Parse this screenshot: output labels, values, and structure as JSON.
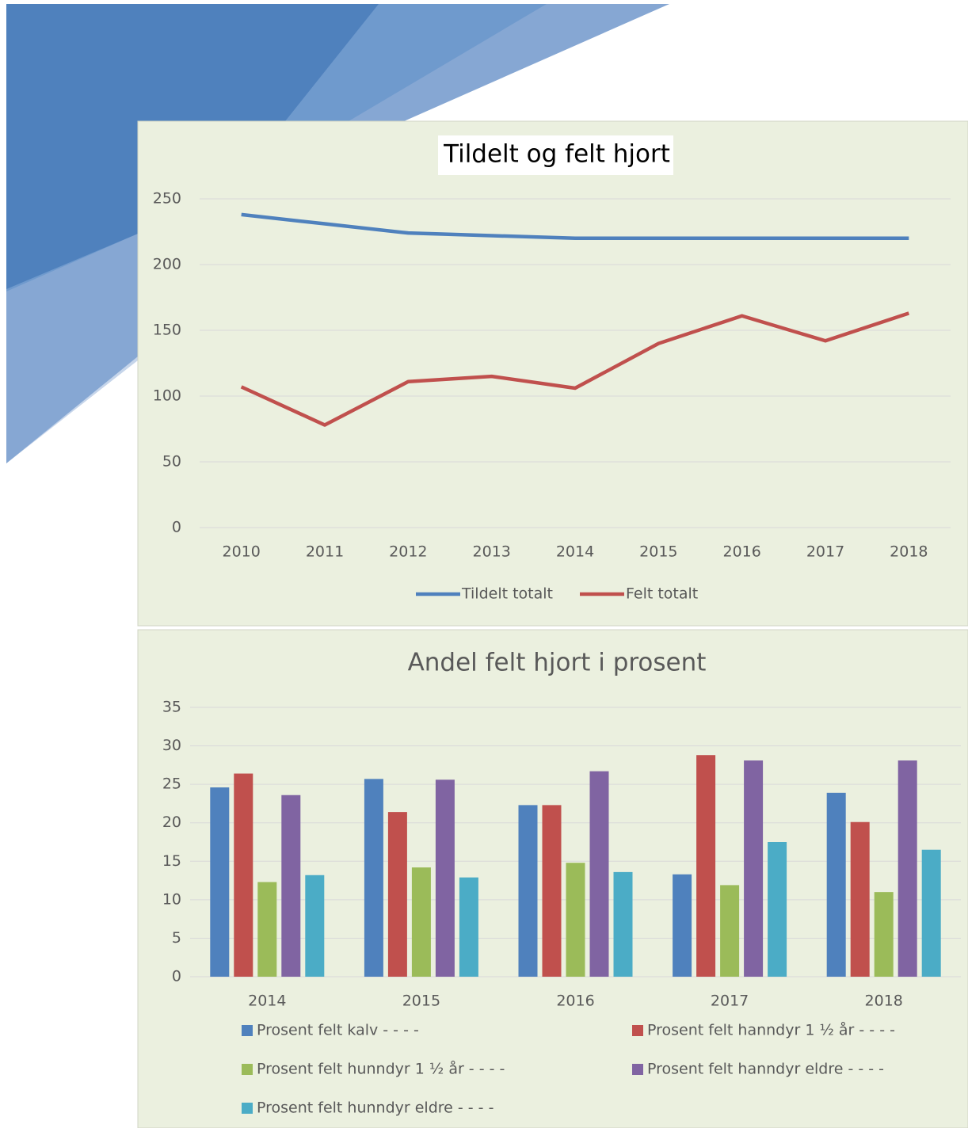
{
  "chart_data": [
    {
      "type": "line",
      "title": "Tildelt og felt hjort",
      "categories": [
        "2010",
        "2011",
        "2012",
        "2013",
        "2014",
        "2015",
        "2016",
        "2017",
        "2018"
      ],
      "series": [
        {
          "name": "Tildelt totalt",
          "color": "#4f81bd",
          "values": [
            238,
            231,
            224,
            222,
            220,
            220,
            220,
            220,
            220
          ]
        },
        {
          "name": "Felt totalt",
          "color": "#c0504d",
          "values": [
            107,
            78,
            111,
            115,
            106,
            140,
            161,
            142,
            163
          ]
        }
      ],
      "ylim": [
        0,
        250
      ],
      "yticks": [
        0,
        50,
        100,
        150,
        200,
        250
      ],
      "grid": true,
      "legend": "bottom"
    },
    {
      "type": "bar",
      "title": "Andel felt hjort i prosent",
      "categories": [
        "2014",
        "2015",
        "2016",
        "2017",
        "2018"
      ],
      "series": [
        {
          "name": "Prosent felt kalv - - - -",
          "color": "#4f81bd",
          "values": [
            24.6,
            25.7,
            22.3,
            13.3,
            23.9
          ]
        },
        {
          "name": "Prosent felt hanndyr 1 ½ år - - - -",
          "color": "#c0504d",
          "values": [
            26.4,
            21.4,
            22.3,
            28.8,
            20.1
          ]
        },
        {
          "name": "Prosent felt hunndyr 1 ½ år - - - -",
          "color": "#9bbb59",
          "values": [
            12.3,
            14.2,
            14.8,
            11.9,
            11.0
          ]
        },
        {
          "name": "Prosent felt hanndyr eldre - - - -",
          "color": "#8064a2",
          "values": [
            23.6,
            25.6,
            26.7,
            28.1,
            28.1
          ]
        },
        {
          "name": "Prosent felt hunndyr eldre - - - -",
          "color": "#4bacc6",
          "values": [
            13.2,
            12.9,
            13.6,
            17.5,
            16.5
          ]
        }
      ],
      "ylim": [
        0,
        35
      ],
      "yticks": [
        0,
        5,
        10,
        15,
        20,
        25,
        30,
        35
      ],
      "grid": true,
      "legend": "bottom"
    }
  ]
}
